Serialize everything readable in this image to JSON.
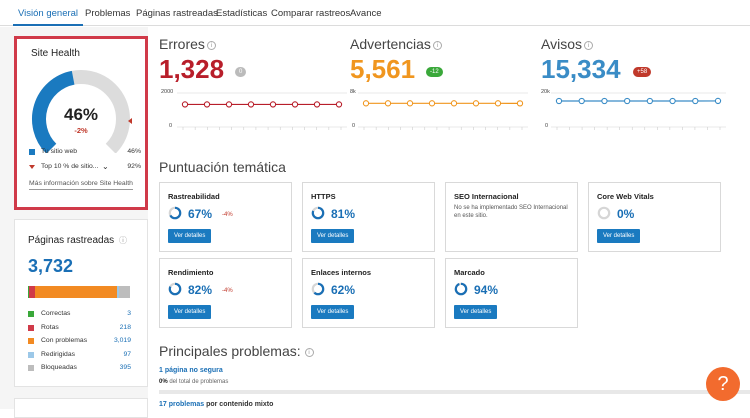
{
  "tabs": [
    {
      "label": "Visión general",
      "active": true
    },
    {
      "label": "Problemas"
    },
    {
      "label": "Páginas rastreadas"
    },
    {
      "label": "Estadísticas"
    },
    {
      "label": "Comparar rastreos"
    },
    {
      "label": "Avance"
    }
  ],
  "site_health": {
    "title": "Site Health",
    "percent": "46%",
    "delta": "-2%",
    "gauge_fraction": 0.46,
    "top10_fraction": 0.92,
    "legend": [
      {
        "label": "Tu sitio web",
        "value": "46%",
        "color": "#1a7ac0"
      },
      {
        "label": "Top 10 % de sitio...",
        "value": "92%",
        "color": "#c0392b"
      }
    ],
    "link": "Más información sobre Site Health"
  },
  "crawled_pages": {
    "title": "Páginas rastreadas",
    "total": "3,732",
    "rows": [
      {
        "label": "Correctas",
        "value": "3",
        "color": "#3aa83a"
      },
      {
        "label": "Rotas",
        "value": "218",
        "color": "#d03a49"
      },
      {
        "label": "Con problemas",
        "value": "3,019",
        "color": "#f28a22"
      },
      {
        "label": "Redirigidas",
        "value": "97",
        "color": "#9cc8e8"
      },
      {
        "label": "Bloqueadas",
        "value": "395",
        "color": "#bdbdbd"
      }
    ]
  },
  "metrics": {
    "errors": {
      "title": "Errores",
      "value": "1,328",
      "badge": "0",
      "color": "#b81e2a",
      "badge_color": "#bbbbbb",
      "axis_top": "2000",
      "axis_bottom": "0",
      "series": [
        1328,
        1328,
        1328,
        1328,
        1328,
        1328,
        1328,
        1328
      ]
    },
    "warnings": {
      "title": "Advertencias",
      "value": "5,561",
      "badge": "-12",
      "color": "#f0961f",
      "badge_color": "#3aa83a",
      "axis_top": "8k",
      "axis_bottom": "0",
      "series": [
        5573,
        5573,
        5573,
        5573,
        5573,
        5573,
        5573,
        5561
      ]
    },
    "notices": {
      "title": "Avisos",
      "value": "15,334",
      "badge": "+58",
      "color": "#3a8cc6",
      "badge_color": "#c0392b",
      "axis_top": "20k",
      "axis_bottom": "0",
      "series": [
        15276,
        15276,
        15276,
        15276,
        15276,
        15276,
        15276,
        15334
      ]
    }
  },
  "thematic": {
    "title": "Puntuación temática",
    "button_label": "Ver detalles",
    "cards": [
      {
        "name": "Rastreabilidad",
        "pct": "67%",
        "delta": "-4%",
        "fraction": 0.67
      },
      {
        "name": "HTTPS",
        "pct": "81%",
        "delta": "",
        "fraction": 0.81
      },
      {
        "name": "SEO Internacional",
        "desc": "No se ha implementado SEO Internacional en este sitio."
      },
      {
        "name": "Core Web Vitals",
        "pct": "0%",
        "delta": "",
        "fraction": 0.0
      },
      {
        "name": "Rendimiento",
        "pct": "82%",
        "delta": "-4%",
        "fraction": 0.82
      },
      {
        "name": "Enlaces internos",
        "pct": "62%",
        "delta": "",
        "fraction": 0.62
      },
      {
        "name": "Marcado",
        "pct": "94%",
        "delta": "",
        "fraction": 0.94
      }
    ]
  },
  "problems": {
    "title": "Principales problemas:",
    "items": [
      {
        "link": "1 página no segura",
        "rest": "",
        "sub_bold": "0%",
        "sub": " del total de problemas"
      },
      {
        "link": "17 problemas",
        "rest": " por contenido mixto"
      }
    ]
  },
  "help": {
    "label": "?"
  }
}
